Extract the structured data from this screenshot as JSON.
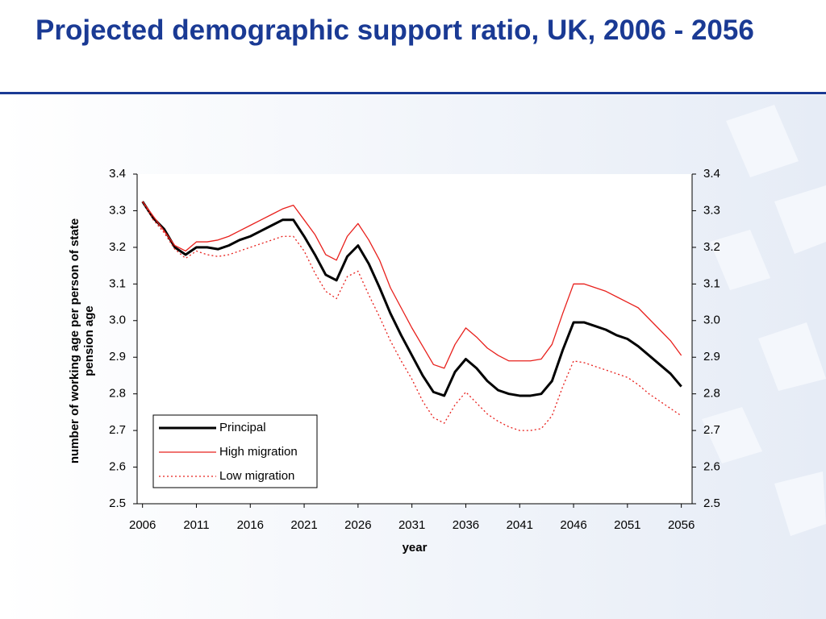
{
  "chart_data": {
    "type": "line",
    "title": "Projected demographic support ratio, UK, 2006 - 2056",
    "xlabel": "year",
    "ylabel": [
      "number of working age per person of state",
      "pension age"
    ],
    "x": [
      2006,
      2007,
      2008,
      2009,
      2010,
      2011,
      2012,
      2013,
      2014,
      2015,
      2016,
      2017,
      2018,
      2019,
      2020,
      2021,
      2022,
      2023,
      2024,
      2025,
      2026,
      2027,
      2028,
      2029,
      2030,
      2031,
      2032,
      2033,
      2034,
      2035,
      2036,
      2037,
      2038,
      2039,
      2040,
      2041,
      2042,
      2043,
      2044,
      2045,
      2046,
      2047,
      2048,
      2049,
      2050,
      2051,
      2052,
      2053,
      2054,
      2055,
      2056
    ],
    "xlim": [
      2005.5,
      2057
    ],
    "xticks": [
      2006,
      2011,
      2016,
      2021,
      2026,
      2031,
      2036,
      2041,
      2046,
      2051,
      2056
    ],
    "ylim": [
      2.5,
      3.4
    ],
    "yticks": [
      2.5,
      2.6,
      2.7,
      2.8,
      2.9,
      {
        "value": 3.0,
        "label": "3.0"
      },
      3.1,
      3.2,
      3.3,
      3.4
    ],
    "y2lim": [
      2.5,
      3.4
    ],
    "y2ticks": [
      2.5,
      2.6,
      2.7,
      2.8,
      2.9,
      {
        "value": 3.0,
        "label": "3.0"
      },
      3.1,
      3.2,
      3.3,
      3.4
    ],
    "grid": false,
    "legend": "lower left",
    "series": [
      {
        "name": "Principal",
        "color": "#000000",
        "linestyle": "solid",
        "linewidth": 3,
        "values": [
          3.325,
          3.28,
          3.25,
          3.2,
          3.18,
          3.2,
          3.2,
          3.195,
          3.205,
          3.22,
          3.23,
          3.245,
          3.26,
          3.275,
          3.275,
          3.23,
          3.18,
          3.125,
          3.11,
          3.175,
          3.205,
          3.155,
          3.09,
          3.02,
          2.96,
          2.905,
          2.85,
          2.805,
          2.795,
          2.86,
          2.895,
          2.87,
          2.835,
          2.81,
          2.8,
          2.795,
          2.795,
          2.8,
          2.835,
          2.92,
          2.995,
          2.995,
          2.985,
          2.975,
          2.96,
          2.95,
          2.93,
          2.905,
          2.88,
          2.855,
          2.82
        ]
      },
      {
        "name": "High migration",
        "color": "#e8201c",
        "linestyle": "solid",
        "linewidth": 1.3,
        "values": [
          3.325,
          3.285,
          3.245,
          3.205,
          3.19,
          3.215,
          3.215,
          3.22,
          3.23,
          3.245,
          3.26,
          3.275,
          3.29,
          3.305,
          3.315,
          3.275,
          3.235,
          3.18,
          3.165,
          3.23,
          3.265,
          3.22,
          3.165,
          3.09,
          3.035,
          2.98,
          2.93,
          2.88,
          2.87,
          2.935,
          2.98,
          2.955,
          2.925,
          2.905,
          2.89,
          2.89,
          2.89,
          2.895,
          2.935,
          3.02,
          3.1,
          3.1,
          3.09,
          3.08,
          3.065,
          3.05,
          3.035,
          3.005,
          2.975,
          2.945,
          2.905
        ]
      },
      {
        "name": "Low migration",
        "color": "#e8201c",
        "linestyle": "dotted",
        "linewidth": 1.3,
        "values": [
          3.325,
          3.275,
          3.24,
          3.195,
          3.17,
          3.19,
          3.18,
          3.175,
          3.18,
          3.19,
          3.2,
          3.21,
          3.22,
          3.23,
          3.23,
          3.19,
          3.13,
          3.08,
          3.06,
          3.12,
          3.135,
          3.07,
          3.01,
          2.945,
          2.89,
          2.84,
          2.78,
          2.735,
          2.72,
          2.77,
          2.805,
          2.775,
          2.745,
          2.725,
          2.71,
          2.7,
          2.7,
          2.705,
          2.74,
          2.82,
          2.89,
          2.885,
          2.875,
          2.865,
          2.855,
          2.845,
          2.825,
          2.8,
          2.78,
          2.76,
          2.74
        ]
      }
    ]
  }
}
